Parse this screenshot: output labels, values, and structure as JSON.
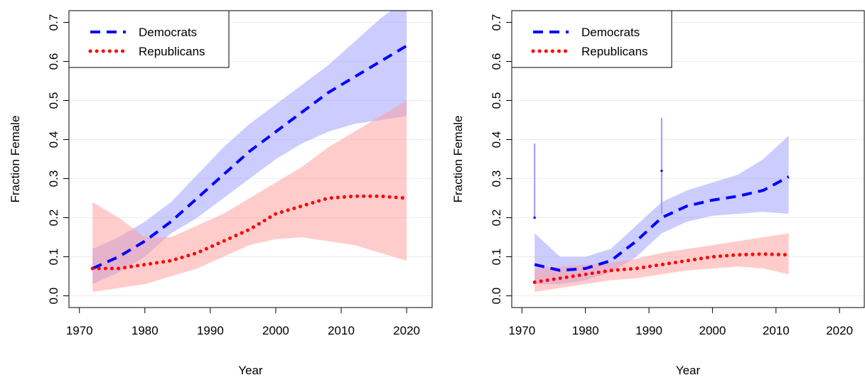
{
  "chart_data": [
    {
      "type": "line",
      "xlabel": "Year",
      "ylabel": "Fraction Female",
      "xlim": [
        1968.4,
        2023.9
      ],
      "xticks": [
        1970,
        1980,
        1990,
        2000,
        2010,
        2020
      ],
      "ylim": [
        -0.03,
        0.73
      ],
      "yticks": [
        {
          "value": 0,
          "label": "0.0"
        },
        {
          "value": 0.1,
          "label": "0.1"
        },
        {
          "value": 0.2,
          "label": "0.2"
        },
        {
          "value": 0.3,
          "label": "0.3"
        },
        {
          "value": 0.4,
          "label": "0.4"
        },
        {
          "value": 0.5,
          "label": "0.5"
        },
        {
          "value": 0.6,
          "label": "0.6"
        },
        {
          "value": 0.7,
          "label": "0.7"
        }
      ],
      "grid": true,
      "legend": "top-left",
      "x": [
        1972,
        1976,
        1980,
        1984,
        1988,
        1992,
        1996,
        2000,
        2004,
        2008,
        2012,
        2016,
        2020
      ],
      "series": [
        {
          "name": "Democrats",
          "color": "#0000ff",
          "band_color": "#9999ff",
          "dash": "dashed",
          "values": [
            0.07,
            0.1,
            0.14,
            0.19,
            0.25,
            0.31,
            0.37,
            0.42,
            0.47,
            0.52,
            0.56,
            0.6,
            0.64
          ],
          "lower": [
            0.03,
            0.06,
            0.1,
            0.16,
            0.2,
            0.25,
            0.3,
            0.35,
            0.39,
            0.42,
            0.44,
            0.45,
            0.46
          ],
          "upper": [
            0.12,
            0.15,
            0.19,
            0.24,
            0.31,
            0.38,
            0.44,
            0.49,
            0.54,
            0.59,
            0.65,
            0.71,
            0.76
          ]
        },
        {
          "name": "Republicans",
          "color": "#ff0000",
          "band_color": "#ff9999",
          "dash": "dotted",
          "values": [
            0.07,
            0.07,
            0.08,
            0.09,
            0.11,
            0.14,
            0.17,
            0.21,
            0.23,
            0.25,
            0.255,
            0.255,
            0.25
          ],
          "lower": [
            0.01,
            0.02,
            0.03,
            0.05,
            0.07,
            0.1,
            0.13,
            0.145,
            0.15,
            0.14,
            0.13,
            0.11,
            0.09
          ],
          "upper": [
            0.24,
            0.2,
            0.15,
            0.15,
            0.18,
            0.21,
            0.25,
            0.29,
            0.33,
            0.38,
            0.42,
            0.46,
            0.5
          ]
        }
      ]
    },
    {
      "type": "line",
      "xlabel": "Year",
      "ylabel": "Fraction Female",
      "xlim": [
        1968.4,
        2023.9
      ],
      "xticks": [
        1970,
        1980,
        1990,
        2000,
        2010,
        2020
      ],
      "ylim": [
        -0.03,
        0.73
      ],
      "yticks": [
        {
          "value": 0,
          "label": "0.0"
        },
        {
          "value": 0.1,
          "label": "0.1"
        },
        {
          "value": 0.2,
          "label": "0.2"
        },
        {
          "value": 0.3,
          "label": "0.3"
        },
        {
          "value": 0.4,
          "label": "0.4"
        },
        {
          "value": 0.5,
          "label": "0.5"
        },
        {
          "value": 0.6,
          "label": "0.6"
        },
        {
          "value": 0.7,
          "label": "0.7"
        }
      ],
      "grid": true,
      "legend": "top-left",
      "x": [
        1972,
        1976,
        1980,
        1984,
        1988,
        1992,
        1996,
        2000,
        2004,
        2008,
        2012
      ],
      "series": [
        {
          "name": "Democrats",
          "color": "#0000ff",
          "band_color": "#9999ff",
          "dash": "dashed",
          "values": [
            0.08,
            0.065,
            0.07,
            0.09,
            0.14,
            0.2,
            0.23,
            0.245,
            0.255,
            0.27,
            0.305
          ],
          "lower": [
            0.03,
            0.03,
            0.04,
            0.06,
            0.1,
            0.16,
            0.19,
            0.205,
            0.21,
            0.215,
            0.21
          ],
          "upper": [
            0.16,
            0.1,
            0.1,
            0.12,
            0.18,
            0.24,
            0.27,
            0.29,
            0.31,
            0.35,
            0.41
          ],
          "isolated": [
            {
              "x": 1972,
              "value": 0.2,
              "lower": 0.2,
              "upper": 0.39
            },
            {
              "x": 1992,
              "value": 0.32,
              "lower": 0.21,
              "upper": 0.455
            }
          ]
        },
        {
          "name": "Republicans",
          "color": "#ff0000",
          "band_color": "#ff9999",
          "dash": "dotted",
          "values": [
            0.035,
            0.045,
            0.055,
            0.065,
            0.07,
            0.08,
            0.09,
            0.1,
            0.105,
            0.107,
            0.105
          ],
          "lower": [
            0.01,
            0.02,
            0.03,
            0.04,
            0.045,
            0.055,
            0.065,
            0.07,
            0.075,
            0.07,
            0.055
          ],
          "upper": [
            0.07,
            0.075,
            0.08,
            0.085,
            0.095,
            0.11,
            0.12,
            0.13,
            0.14,
            0.15,
            0.16
          ]
        }
      ]
    }
  ]
}
